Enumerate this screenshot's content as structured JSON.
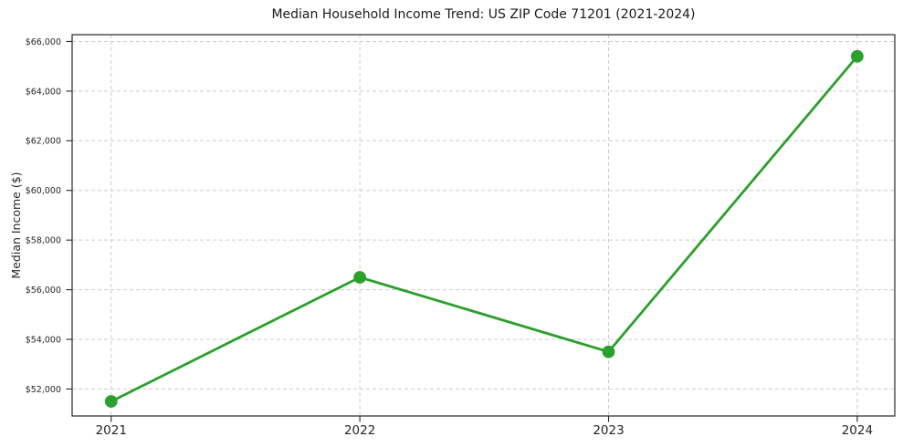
{
  "chart_data": {
    "type": "line",
    "title": "Median Household Income Trend: US ZIP Code 71201 (2021-2024)",
    "xlabel": "",
    "ylabel": "Median Income ($)",
    "x": [
      2021,
      2022,
      2023,
      2024
    ],
    "x_tick_labels": [
      "2021",
      "2022",
      "2023",
      "2024"
    ],
    "values": [
      51500,
      56500,
      53500,
      65400
    ],
    "y_ticks": [
      52000,
      54000,
      56000,
      58000,
      60000,
      62000,
      64000,
      66000
    ],
    "y_tick_labels": [
      "$52,000",
      "$54,000",
      "$56,000",
      "$58,000",
      "$60,000",
      "$62,000",
      "$64,000",
      "$66,000"
    ],
    "xlim": [
      2020.843,
      2024.151
    ],
    "ylim": [
      50914,
      66274
    ],
    "grid": true,
    "legend_position": "none",
    "line_color": "#2ca02c",
    "marker": "circle",
    "marker_color": "#2ca02c",
    "grid_color": "#cccccc",
    "axis_color": "#262626",
    "text_color": "#262626",
    "background_color": "#ffffff"
  }
}
